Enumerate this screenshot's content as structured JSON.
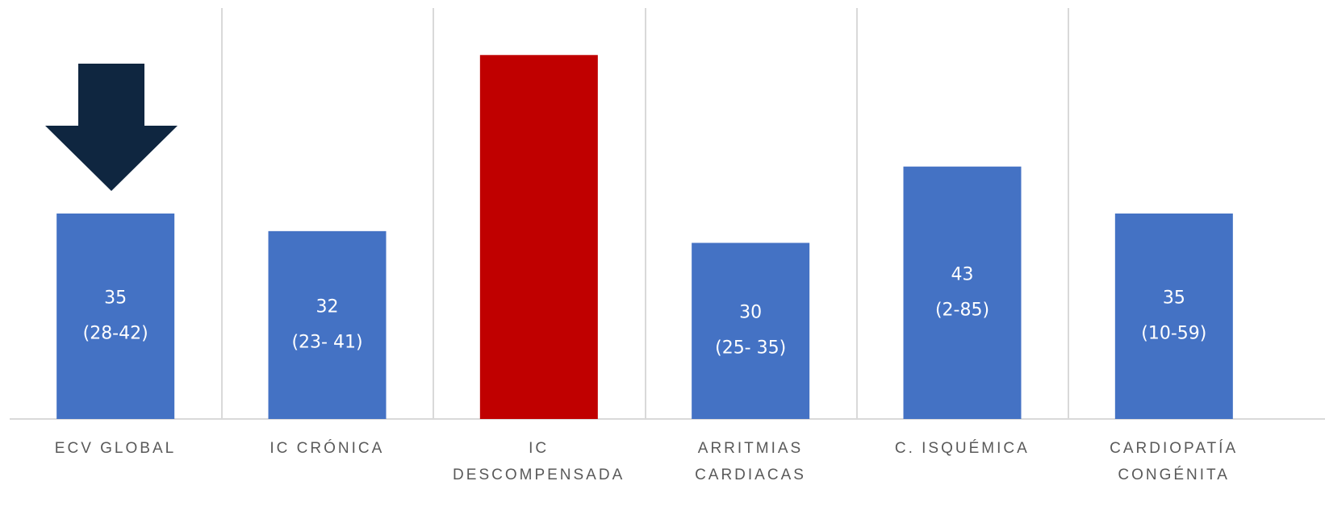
{
  "chart_data": {
    "type": "bar",
    "categories": [
      "ECV GLOBAL",
      "IC CRÓNICA",
      "IC\nDESCOMPENSADA",
      "ARRITMIAS\nCARDIACAS",
      "C. ISQUÉMICA",
      "CARDIOPATÍA\nCONGÉNITA"
    ],
    "values": [
      35,
      32,
      62,
      30,
      43,
      35
    ],
    "value_labels": [
      "35",
      "32",
      null,
      "30",
      "43",
      "35"
    ],
    "ranges": [
      "(28-42)",
      "(23- 41)",
      null,
      "(25- 35)",
      "(2-85)",
      "(10-59)"
    ],
    "colors": [
      "#4472c4",
      "#4472c4",
      "#c00000",
      "#4472c4",
      "#4472c4",
      "#4472c4"
    ],
    "ylim": [
      0,
      70
    ]
  }
}
